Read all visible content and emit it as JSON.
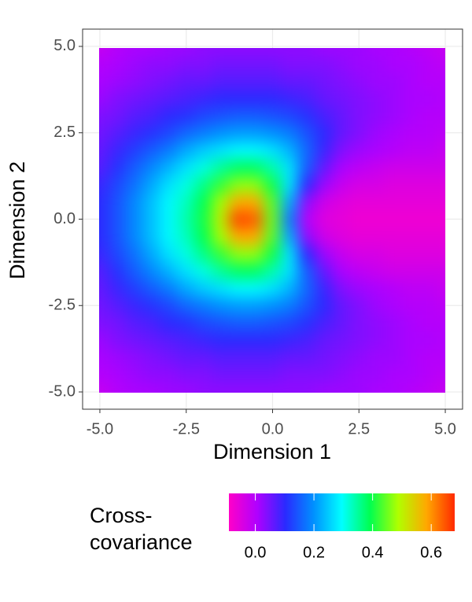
{
  "chart_data": {
    "type": "heatmap",
    "x_label": "Dimension 1",
    "y_label": "Dimension 2",
    "xlim": [
      -5.5,
      5.5
    ],
    "ylim": [
      -5.5,
      5.5
    ],
    "xticks": [
      {
        "value": -5,
        "label": "-5.0"
      },
      {
        "value": -2.5,
        "label": "-2.5"
      },
      {
        "value": 0,
        "label": "0.0"
      },
      {
        "value": 2.5,
        "label": "2.5"
      },
      {
        "value": 5,
        "label": "5.0"
      }
    ],
    "yticks": [
      {
        "value": -5,
        "label": "-5.0"
      },
      {
        "value": -2.5,
        "label": "-2.5"
      },
      {
        "value": 0,
        "label": "0.0"
      },
      {
        "value": 2.5,
        "label": "2.5"
      },
      {
        "value": 5,
        "label": "5.0"
      }
    ],
    "grid": true,
    "x": [
      -5,
      -4.5,
      -4,
      -3.5,
      -3,
      -2.5,
      -2,
      -1.5,
      -1,
      -0.5,
      0,
      0.5,
      1,
      1.5,
      2,
      2.5,
      3,
      3.5,
      4,
      4.5,
      5
    ],
    "y": [
      -5,
      -4.5,
      -4,
      -3.5,
      -3,
      -2.5,
      -2,
      -1.5,
      -1,
      -0.5,
      0,
      0.5,
      1,
      1.5,
      2,
      2.5,
      3,
      3.5,
      4,
      4.5,
      5
    ],
    "z": [
      [
        -0.02,
        0.0,
        0.01,
        0.01,
        0.02,
        0.02,
        0.03,
        0.03,
        0.03,
        0.03,
        0.03,
        0.03,
        0.03,
        0.02,
        0.02,
        0.02,
        0.01,
        0.01,
        0.0,
        -0.01,
        -0.02
      ],
      [
        0.0,
        0.01,
        0.02,
        0.03,
        0.03,
        0.04,
        0.04,
        0.05,
        0.05,
        0.05,
        0.05,
        0.04,
        0.04,
        0.04,
        0.03,
        0.02,
        0.02,
        0.01,
        0.01,
        0.0,
        -0.01
      ],
      [
        0.01,
        0.02,
        0.03,
        0.04,
        0.05,
        0.06,
        0.06,
        0.07,
        0.07,
        0.07,
        0.07,
        0.06,
        0.06,
        0.05,
        0.04,
        0.03,
        0.02,
        0.02,
        0.01,
        0.0,
        0.0
      ],
      [
        0.02,
        0.04,
        0.05,
        0.06,
        0.07,
        0.08,
        0.09,
        0.1,
        0.1,
        0.1,
        0.1,
        0.09,
        0.08,
        0.06,
        0.05,
        0.04,
        0.03,
        0.02,
        0.01,
        0.01,
        0.0
      ],
      [
        0.04,
        0.05,
        0.07,
        0.08,
        0.1,
        0.11,
        0.13,
        0.14,
        0.15,
        0.15,
        0.14,
        0.13,
        0.11,
        0.08,
        0.06,
        0.04,
        0.03,
        0.02,
        0.01,
        0.0,
        0.0
      ],
      [
        0.05,
        0.07,
        0.09,
        0.11,
        0.13,
        0.16,
        0.18,
        0.2,
        0.21,
        0.21,
        0.2,
        0.18,
        0.14,
        0.1,
        0.06,
        0.04,
        0.02,
        0.01,
        0.0,
        0.0,
        -0.01
      ],
      [
        0.06,
        0.09,
        0.12,
        0.15,
        0.18,
        0.22,
        0.25,
        0.27,
        0.29,
        0.29,
        0.27,
        0.23,
        0.16,
        0.09,
        0.04,
        0.02,
        0.01,
        0.0,
        -0.01,
        -0.01,
        -0.02
      ],
      [
        0.07,
        0.11,
        0.15,
        0.19,
        0.23,
        0.27,
        0.31,
        0.35,
        0.38,
        0.38,
        0.34,
        0.27,
        0.15,
        0.06,
        0.01,
        -0.01,
        -0.02,
        -0.03,
        -0.03,
        -0.03,
        -0.03
      ],
      [
        0.09,
        0.13,
        0.17,
        0.22,
        0.27,
        0.31,
        0.36,
        0.42,
        0.47,
        0.47,
        0.4,
        0.27,
        0.1,
        0.02,
        -0.02,
        -0.04,
        -0.04,
        -0.05,
        -0.05,
        -0.05,
        -0.05
      ],
      [
        0.1,
        0.14,
        0.19,
        0.24,
        0.29,
        0.33,
        0.39,
        0.48,
        0.58,
        0.58,
        0.44,
        0.22,
        0.03,
        -0.03,
        -0.05,
        -0.06,
        -0.06,
        -0.06,
        -0.06,
        -0.06,
        -0.06
      ],
      [
        0.1,
        0.14,
        0.19,
        0.24,
        0.29,
        0.34,
        0.4,
        0.5,
        0.66,
        0.64,
        0.45,
        0.18,
        0.0,
        -0.05,
        -0.06,
        -0.07,
        -0.07,
        -0.07,
        -0.07,
        -0.07,
        -0.07
      ],
      [
        0.1,
        0.14,
        0.19,
        0.24,
        0.29,
        0.33,
        0.39,
        0.48,
        0.58,
        0.58,
        0.44,
        0.22,
        0.03,
        -0.03,
        -0.05,
        -0.06,
        -0.06,
        -0.06,
        -0.06,
        -0.06,
        -0.06
      ],
      [
        0.09,
        0.13,
        0.17,
        0.22,
        0.27,
        0.31,
        0.36,
        0.42,
        0.47,
        0.47,
        0.4,
        0.27,
        0.1,
        0.02,
        -0.02,
        -0.04,
        -0.04,
        -0.05,
        -0.05,
        -0.05,
        -0.05
      ],
      [
        0.07,
        0.11,
        0.15,
        0.19,
        0.23,
        0.27,
        0.31,
        0.35,
        0.38,
        0.38,
        0.34,
        0.27,
        0.15,
        0.06,
        0.01,
        -0.01,
        -0.02,
        -0.03,
        -0.03,
        -0.03,
        -0.03
      ],
      [
        0.06,
        0.09,
        0.12,
        0.15,
        0.18,
        0.22,
        0.25,
        0.27,
        0.29,
        0.29,
        0.27,
        0.23,
        0.16,
        0.09,
        0.04,
        0.02,
        0.01,
        0.0,
        -0.01,
        -0.01,
        -0.02
      ],
      [
        0.05,
        0.07,
        0.09,
        0.11,
        0.13,
        0.16,
        0.18,
        0.2,
        0.21,
        0.21,
        0.2,
        0.18,
        0.14,
        0.1,
        0.06,
        0.04,
        0.02,
        0.01,
        0.0,
        0.0,
        -0.01
      ],
      [
        0.04,
        0.05,
        0.07,
        0.08,
        0.1,
        0.11,
        0.13,
        0.14,
        0.15,
        0.15,
        0.14,
        0.13,
        0.11,
        0.08,
        0.06,
        0.04,
        0.03,
        0.02,
        0.01,
        0.0,
        0.0
      ],
      [
        0.02,
        0.04,
        0.05,
        0.06,
        0.07,
        0.08,
        0.09,
        0.1,
        0.1,
        0.1,
        0.1,
        0.09,
        0.08,
        0.06,
        0.05,
        0.04,
        0.03,
        0.02,
        0.01,
        0.01,
        0.0
      ],
      [
        0.01,
        0.02,
        0.03,
        0.04,
        0.05,
        0.06,
        0.06,
        0.07,
        0.07,
        0.07,
        0.07,
        0.06,
        0.06,
        0.05,
        0.04,
        0.03,
        0.02,
        0.02,
        0.01,
        0.0,
        0.0
      ],
      [
        0.0,
        0.01,
        0.02,
        0.03,
        0.03,
        0.04,
        0.04,
        0.05,
        0.05,
        0.05,
        0.05,
        0.04,
        0.04,
        0.04,
        0.03,
        0.02,
        0.02,
        0.01,
        0.01,
        0.0,
        -0.01
      ],
      [
        -0.02,
        0.0,
        0.01,
        0.01,
        0.02,
        0.02,
        0.03,
        0.03,
        0.03,
        0.03,
        0.03,
        0.03,
        0.03,
        0.02,
        0.02,
        0.02,
        0.01,
        0.01,
        0.0,
        -0.01,
        -0.02
      ]
    ],
    "colorbar_title": [
      "Cross-",
      "covariance"
    ],
    "clim": [
      -0.09,
      0.68
    ],
    "cticks": [
      {
        "value": 0,
        "label": "0.0"
      },
      {
        "value": 0.2,
        "label": "0.2"
      },
      {
        "value": 0.4,
        "label": "0.4"
      },
      {
        "value": 0.6,
        "label": "0.6"
      }
    ],
    "colors": [
      "#ff00c8",
      "#b000ff",
      "#2a2aff",
      "#0090ff",
      "#00ffff",
      "#00ff50",
      "#b0ff00",
      "#ffa800",
      "#ff2a00"
    ]
  }
}
